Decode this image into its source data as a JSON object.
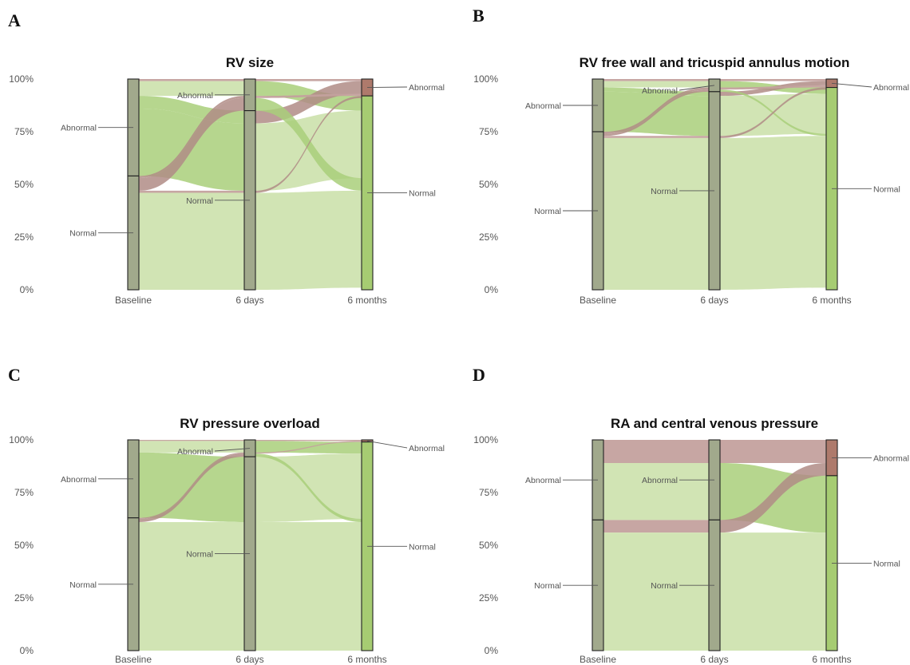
{
  "colors": {
    "flow_to_normal": "#cfe3b0",
    "flow_to_abnormal": "#c4a19e",
    "flow_highlight_normal": "#a9cf7a",
    "flow_highlight_abnormal": "#b08c86",
    "stratum_baseline": "#a1a98c",
    "stratum_normal_6months": "#a6cc72",
    "stratum_abnormal_6months": "#ae7a6c"
  },
  "charts": [
    {
      "panel_letter": "A",
      "title": "RV size",
      "y_ticks": [
        "0%",
        "25%",
        "50%",
        "75%",
        "100%"
      ],
      "x_ticks": [
        "Baseline",
        "6 days",
        "6 months"
      ],
      "labels": {
        "normal": "Normal",
        "abnormal": "Abnormal"
      }
    },
    {
      "panel_letter": "B",
      "title": "RV free wall and tricuspid annulus motion",
      "y_ticks": [
        "0%",
        "25%",
        "50%",
        "75%",
        "100%"
      ],
      "x_ticks": [
        "Baseline",
        "6 days",
        "6 months"
      ],
      "labels": {
        "normal": "Normal",
        "abnormal": "Abnormal"
      }
    },
    {
      "panel_letter": "C",
      "title": "RV pressure overload",
      "y_ticks": [
        "0%",
        "25%",
        "50%",
        "75%",
        "100%"
      ],
      "x_ticks": [
        "Baseline",
        "6 days",
        "6 months"
      ],
      "labels": {
        "normal": "Normal",
        "abnormal": "Abnormal"
      }
    },
    {
      "panel_letter": "D",
      "title": "RA and central venous pressure",
      "y_ticks": [
        "0%",
        "25%",
        "50%",
        "75%",
        "100%"
      ],
      "x_ticks": [
        "Baseline",
        "6 days",
        "6 months"
      ],
      "labels": {
        "normal": "Normal",
        "abnormal": "Abnormal"
      }
    }
  ],
  "chart_data": [
    {
      "type": "alluvial",
      "title": "RV size",
      "axes": [
        "Baseline",
        "6 days",
        "6 months"
      ],
      "y_unit": "percent",
      "ylim": [
        0,
        100
      ],
      "categories": [
        "Normal",
        "Abnormal"
      ],
      "strata_percent": {
        "Baseline": {
          "Normal": 54,
          "Abnormal": 46
        },
        "6 days": {
          "Normal": 85,
          "Abnormal": 15
        },
        "6 months": {
          "Normal": 92,
          "Abnormal": 8
        }
      },
      "flows_percent": [
        {
          "path": [
            "Normal",
            "Normal",
            "Normal"
          ],
          "value": 46
        },
        {
          "path": [
            "Normal",
            "Normal",
            "Abnormal"
          ],
          "value": 1
        },
        {
          "path": [
            "Normal",
            "Abnormal",
            "Normal"
          ],
          "value": 6
        },
        {
          "path": [
            "Normal",
            "Abnormal",
            "Abnormal"
          ],
          "value": 1
        },
        {
          "path": [
            "Abnormal",
            "Normal",
            "Normal"
          ],
          "value": 32
        },
        {
          "path": [
            "Abnormal",
            "Normal",
            "Abnormal"
          ],
          "value": 6
        },
        {
          "path": [
            "Abnormal",
            "Abnormal",
            "Normal"
          ],
          "value": 7
        },
        {
          "path": [
            "Abnormal",
            "Abnormal",
            "Abnormal"
          ],
          "value": 1
        }
      ]
    },
    {
      "type": "alluvial",
      "title": "RV free wall and tricuspid annulus motion",
      "axes": [
        "Baseline",
        "6 days",
        "6 months"
      ],
      "y_unit": "percent",
      "ylim": [
        0,
        100
      ],
      "categories": [
        "Normal",
        "Abnormal"
      ],
      "strata_percent": {
        "Baseline": {
          "Normal": 75,
          "Abnormal": 25
        },
        "6 days": {
          "Normal": 94,
          "Abnormal": 6
        },
        "6 months": {
          "Normal": 96,
          "Abnormal": 4
        }
      },
      "flows_percent": [
        {
          "path": [
            "Normal",
            "Normal",
            "Normal"
          ],
          "value": 72
        },
        {
          "path": [
            "Normal",
            "Normal",
            "Abnormal"
          ],
          "value": 1
        },
        {
          "path": [
            "Normal",
            "Abnormal",
            "Normal"
          ],
          "value": 1
        },
        {
          "path": [
            "Normal",
            "Abnormal",
            "Abnormal"
          ],
          "value": 1
        },
        {
          "path": [
            "Abnormal",
            "Normal",
            "Normal"
          ],
          "value": 19
        },
        {
          "path": [
            "Abnormal",
            "Normal",
            "Abnormal"
          ],
          "value": 2
        },
        {
          "path": [
            "Abnormal",
            "Abnormal",
            "Normal"
          ],
          "value": 3
        },
        {
          "path": [
            "Abnormal",
            "Abnormal",
            "Abnormal"
          ],
          "value": 1
        }
      ]
    },
    {
      "type": "alluvial",
      "title": "RV pressure overload",
      "axes": [
        "Baseline",
        "6 days",
        "6 months"
      ],
      "y_unit": "percent",
      "ylim": [
        0,
        100
      ],
      "categories": [
        "Normal",
        "Abnormal"
      ],
      "strata_percent": {
        "Baseline": {
          "Normal": 63,
          "Abnormal": 37
        },
        "6 days": {
          "Normal": 92,
          "Abnormal": 8
        },
        "6 months": {
          "Normal": 99,
          "Abnormal": 1
        }
      },
      "flows_percent": [
        {
          "path": [
            "Normal",
            "Normal",
            "Normal"
          ],
          "value": 61
        },
        {
          "path": [
            "Normal",
            "Abnormal",
            "Normal"
          ],
          "value": 1.5
        },
        {
          "path": [
            "Normal",
            "Abnormal",
            "Abnormal"
          ],
          "value": 0.5
        },
        {
          "path": [
            "Abnormal",
            "Normal",
            "Normal"
          ],
          "value": 31
        },
        {
          "path": [
            "Abnormal",
            "Abnormal",
            "Normal"
          ],
          "value": 5.5
        },
        {
          "path": [
            "Abnormal",
            "Abnormal",
            "Abnormal"
          ],
          "value": 0.5
        }
      ]
    },
    {
      "type": "alluvial",
      "title": "RA and central venous pressure",
      "axes": [
        "Baseline",
        "6 days",
        "6 months"
      ],
      "y_unit": "percent",
      "ylim": [
        0,
        100
      ],
      "categories": [
        "Normal",
        "Abnormal"
      ],
      "strata_percent": {
        "Baseline": {
          "Normal": 62,
          "Abnormal": 38
        },
        "6 days": {
          "Normal": 62,
          "Abnormal": 38
        },
        "6 months": {
          "Normal": 83,
          "Abnormal": 17
        }
      },
      "flows_percent": [
        {
          "path": [
            "Normal",
            "Normal",
            "Normal"
          ],
          "value": 56
        },
        {
          "path": [
            "Normal",
            "Normal",
            "Abnormal"
          ],
          "value": 6
        },
        {
          "path": [
            "Abnormal",
            "Abnormal",
            "Normal"
          ],
          "value": 27
        },
        {
          "path": [
            "Abnormal",
            "Abnormal",
            "Abnormal"
          ],
          "value": 11
        }
      ]
    }
  ]
}
